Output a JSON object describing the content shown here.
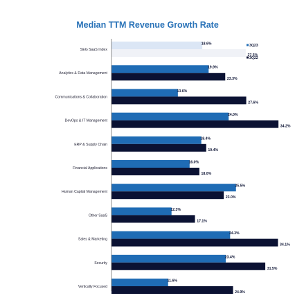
{
  "chart_data": {
    "type": "bar",
    "orientation": "horizontal",
    "title": "Median TTM Revenue Growth Rate",
    "categories": [
      "SEG SaaS Index",
      "Analytics & Data Management",
      "Communications & Collaboration",
      "DevOps & IT Management",
      "ERP & Supply Chain",
      "Financial Applications",
      "Human Capital Management",
      "Other SaaS",
      "Sales & Marketing",
      "Security",
      "Vertically Focused"
    ],
    "series": [
      {
        "name": "3Q23",
        "values": [
          18.6,
          19.9,
          13.6,
          24.0,
          18.4,
          16.0,
          25.5,
          12.3,
          24.3,
          23.4,
          11.6
        ],
        "labels": [
          "18.6%",
          "19.9%",
          "13.6%",
          "24.0%",
          "18.4%",
          "16.0%",
          "25.5%",
          "12.3%",
          "24.3%",
          "23.4%",
          "11.6%"
        ]
      },
      {
        "name": "3Q22",
        "values": [
          27.5,
          23.3,
          27.6,
          34.2,
          19.4,
          18.0,
          23.0,
          17.1,
          34.1,
          31.5,
          24.9
        ],
        "labels": [
          "27.5%",
          "23.3%",
          "27.6%",
          "34.2%",
          "19.4%",
          "18.0%",
          "23.0%",
          "17.1%",
          "34.1%",
          "31.5%",
          "24.9%"
        ]
      }
    ],
    "xlim": [
      0,
      40
    ],
    "grid": false,
    "legend_position": "top-right",
    "colors": {
      "3Q23": "#1f6cb5",
      "3Q22": "#0b1233",
      "index_3Q23": "#dbe6f5",
      "index_3Q22": "#f0f2f7"
    }
  }
}
